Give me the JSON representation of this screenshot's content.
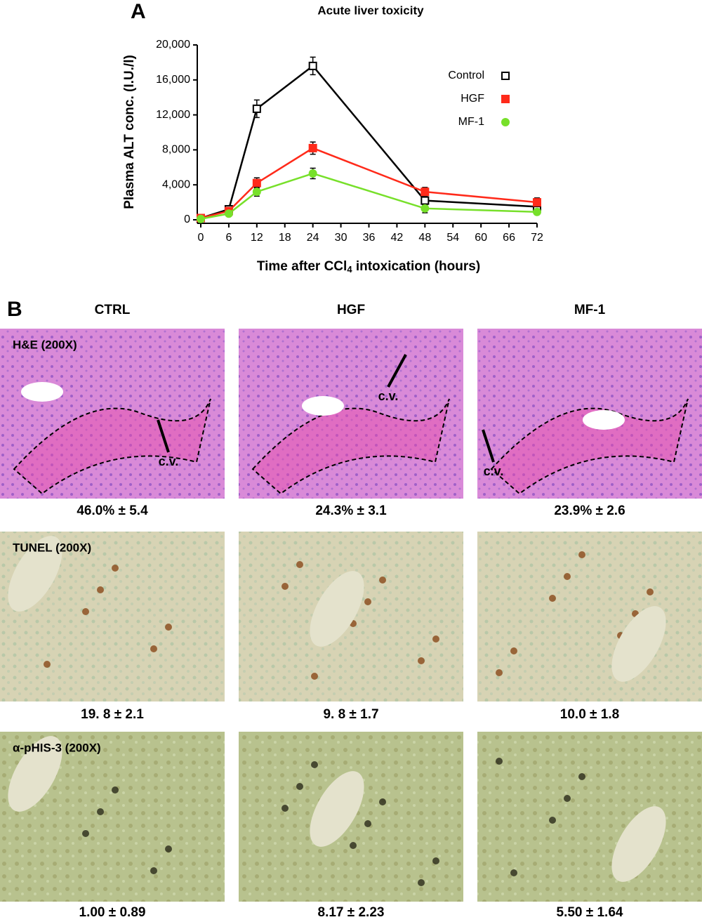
{
  "chart_data": {
    "type": "line",
    "panel_label": "A",
    "title": "Acute liver toxicity",
    "y_label": "Plasma ALT conc. (I.U./l)",
    "x_label": [
      "Time after CCl",
      "4",
      " intoxication (hours)"
    ],
    "x": [
      0,
      6,
      12,
      24,
      48,
      72
    ],
    "series": [
      {
        "name": "Control",
        "color": "#000000",
        "marker": "open-square",
        "values": [
          200,
          1200,
          12700,
          17600,
          2200,
          1500
        ],
        "errors": [
          150,
          200,
          1000,
          1000,
          500,
          500
        ]
      },
      {
        "name": "HGF",
        "color": "#ff2a1a",
        "marker": "square",
        "values": [
          200,
          1000,
          4200,
          8200,
          3200,
          2000
        ],
        "errors": [
          100,
          200,
          600,
          700,
          500,
          500
        ]
      },
      {
        "name": "MF-1",
        "color": "#77e02a",
        "marker": "circle",
        "values": [
          100,
          700,
          3200,
          5300,
          1300,
          900
        ],
        "errors": [
          100,
          200,
          500,
          600,
          500,
          300
        ]
      }
    ],
    "xlim": [
      0,
      72
    ],
    "xticks": [
      0,
      6,
      12,
      18,
      24,
      30,
      36,
      42,
      48,
      54,
      60,
      66,
      72
    ],
    "ylim": [
      0,
      20000
    ],
    "yticks": [
      0,
      {
        "value": 4000,
        "label": "4,000"
      },
      {
        "value": 8000,
        "label": "8,000"
      },
      {
        "value": 12000,
        "label": "12,000"
      },
      {
        "value": 16000,
        "label": "16,000"
      },
      {
        "value": 20000,
        "label": "20,000"
      }
    ],
    "grid": false
  },
  "panel_b": {
    "label": "B",
    "columns": [
      "CTRL",
      "HGF",
      "MF-1"
    ],
    "rows": [
      {
        "stain": "H&E (200X)",
        "captions": [
          "46.0% ± 5.4",
          "24.3% ± 3.1",
          "23.9% ± 2.6"
        ],
        "annotations": [
          "c.v.",
          "c.v.",
          "c.v."
        ]
      },
      {
        "stain": "TUNEL (200X)",
        "captions": [
          "19. 8 ± 2.1",
          "9. 8 ± 1.7",
          "10.0 ± 1.8"
        ]
      },
      {
        "stain": "α-pHIS-3 (200X)",
        "captions": [
          "1.00 ± 0.89",
          "8.17 ± 2.23",
          "5.50 ± 1.64"
        ]
      }
    ]
  }
}
